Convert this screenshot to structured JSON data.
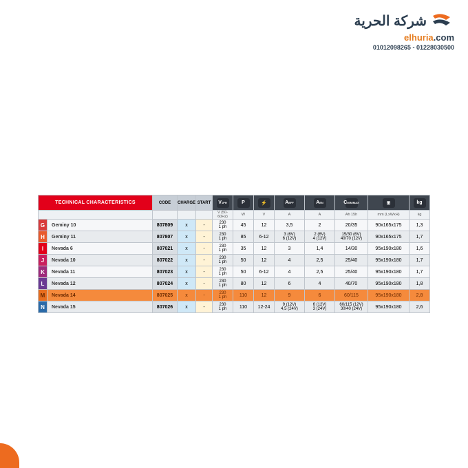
{
  "logo": {
    "arabic": "شركة الحرية",
    "url_main": "elhuria",
    "url_com": ".com",
    "phone": "01228030500 - 01012098265"
  },
  "headers": {
    "title": "TECHNICAL CHARACTERISTICS",
    "code": "CODE",
    "charge": "CHARGE",
    "start": "START",
    "icons": [
      "V",
      "P",
      "⚡",
      "A",
      "A",
      "C",
      "⊞",
      "kg"
    ],
    "icon_sub": [
      "1PH",
      "",
      "",
      "EFF",
      "EN",
      "MIN/MAX",
      "",
      ""
    ]
  },
  "units": [
    "V (50-60Hz)",
    "W",
    "V",
    "A",
    "A",
    "Ah 15h",
    "mm (LxWxH)",
    "kg"
  ],
  "row_colors": {
    "G": "#d83b3b",
    "H": "#e85a2c",
    "I": "#e2001a",
    "J": "#c91f5d",
    "K": "#9e2a7a",
    "L": "#6a3a93",
    "M": "#e86d1e",
    "N": "#2a6aa8"
  },
  "rows": [
    {
      "l": "G",
      "name": "Geminy 10",
      "code": "807809",
      "charge": "x",
      "start": "-",
      "v": "230\n1 ph",
      "w": "45",
      "volt": "12",
      "aeff": "3,5",
      "aen": "2",
      "c": "20/35",
      "dim": "90x165x175",
      "kg": "1,3",
      "odd": true
    },
    {
      "l": "H",
      "name": "Geminy 11",
      "code": "807807",
      "charge": "x",
      "start": "-",
      "v": "230\n1 ph",
      "w": "85",
      "volt": "6-12",
      "aeff": "3 (6V)\n6 (12V)",
      "aen": "2 (6V)\n4 (12V)",
      "c": "15/30 (6V)\n40/70 (12V)",
      "dim": "90x165x175",
      "kg": "1,7",
      "odd": false
    },
    {
      "l": "I",
      "name": "Nevada 6",
      "code": "807021",
      "charge": "x",
      "start": "-",
      "v": "230\n1 ph",
      "w": "35",
      "volt": "12",
      "aeff": "3",
      "aen": "1,4",
      "c": "14/30",
      "dim": "95x190x180",
      "kg": "1,6",
      "odd": true
    },
    {
      "l": "J",
      "name": "Nevada 10",
      "code": "807022",
      "charge": "x",
      "start": "-",
      "v": "230\n1 ph",
      "w": "50",
      "volt": "12",
      "aeff": "4",
      "aen": "2,5",
      "c": "25/40",
      "dim": "95x190x180",
      "kg": "1,7",
      "odd": false
    },
    {
      "l": "K",
      "name": "Nevada 11",
      "code": "807023",
      "charge": "x",
      "start": "-",
      "v": "230\n1 ph",
      "w": "50",
      "volt": "6-12",
      "aeff": "4",
      "aen": "2,5",
      "c": "25/40",
      "dim": "95x190x180",
      "kg": "1,7",
      "odd": true
    },
    {
      "l": "L",
      "name": "Nevada 12",
      "code": "807024",
      "charge": "x",
      "start": "-",
      "v": "230\n1 ph",
      "w": "80",
      "volt": "12",
      "aeff": "6",
      "aen": "4",
      "c": "40/70",
      "dim": "95x190x180",
      "kg": "1,8",
      "odd": false
    },
    {
      "l": "M",
      "name": "Nevada 14",
      "code": "807025",
      "charge": "x",
      "start": "-",
      "v": "230\n1 ph",
      "w": "110",
      "volt": "12",
      "aeff": "9",
      "aen": "6",
      "c": "60/115",
      "dim": "95x190x180",
      "kg": "2,8",
      "hl": true
    },
    {
      "l": "N",
      "name": "Nevada 15",
      "code": "807026",
      "charge": "x",
      "start": "-",
      "v": "230\n1 ph",
      "w": "110",
      "volt": "12-24",
      "aeff": "9 (12V)\n4,5 (24V)",
      "aen": "6 (12V)\n3 (24V)",
      "c": "60/115 (12V)\n30/40 (24V)",
      "dim": "95x190x180",
      "kg": "2,6",
      "odd": false
    }
  ],
  "col_widths": [
    "30px",
    "30px",
    "30px",
    "44px",
    "44px",
    "48px",
    "60px",
    "30px"
  ]
}
